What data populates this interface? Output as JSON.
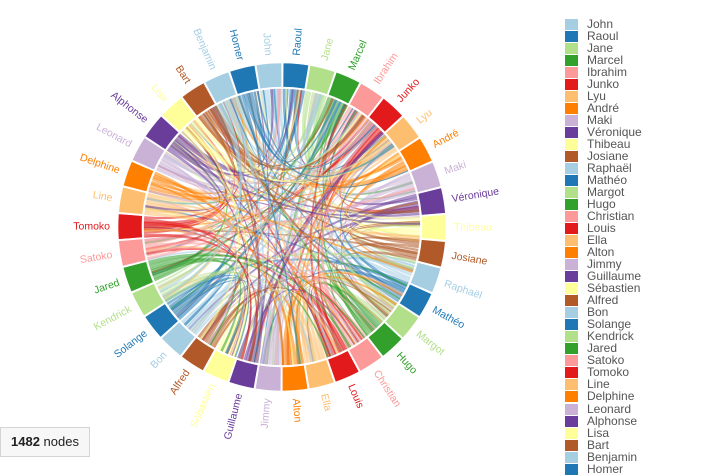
{
  "chart_data": {
    "type": "chord",
    "groups": [
      {
        "name": "John",
        "color": "#a6cee3"
      },
      {
        "name": "Raoul",
        "color": "#1f78b4"
      },
      {
        "name": "Jane",
        "color": "#b2df8a"
      },
      {
        "name": "Marcel",
        "color": "#33a02c"
      },
      {
        "name": "Ibrahim",
        "color": "#fb9a99"
      },
      {
        "name": "Junko",
        "color": "#e31a1c"
      },
      {
        "name": "Lyu",
        "color": "#fdbf6f"
      },
      {
        "name": "André",
        "color": "#ff7f00"
      },
      {
        "name": "Maki",
        "color": "#cab2d6"
      },
      {
        "name": "Véronique",
        "color": "#6a3d9a"
      },
      {
        "name": "Thibeau",
        "color": "#ffff99"
      },
      {
        "name": "Josiane",
        "color": "#b15928"
      },
      {
        "name": "Raphaël",
        "color": "#a6cee3"
      },
      {
        "name": "Mathéo",
        "color": "#1f78b4"
      },
      {
        "name": "Margot",
        "color": "#b2df8a"
      },
      {
        "name": "Hugo",
        "color": "#33a02c"
      },
      {
        "name": "Christian",
        "color": "#fb9a99"
      },
      {
        "name": "Louis",
        "color": "#e31a1c"
      },
      {
        "name": "Ella",
        "color": "#fdbf6f"
      },
      {
        "name": "Alton",
        "color": "#ff7f00"
      },
      {
        "name": "Jimmy",
        "color": "#cab2d6"
      },
      {
        "name": "Guillaume",
        "color": "#6a3d9a"
      },
      {
        "name": "Sébastien",
        "color": "#ffff99"
      },
      {
        "name": "Alfred",
        "color": "#b15928"
      },
      {
        "name": "Bon",
        "color": "#a6cee3"
      },
      {
        "name": "Solange",
        "color": "#1f78b4"
      },
      {
        "name": "Kendrick",
        "color": "#b2df8a"
      },
      {
        "name": "Jared",
        "color": "#33a02c"
      },
      {
        "name": "Satoko",
        "color": "#fb9a99"
      },
      {
        "name": "Tomoko",
        "color": "#e31a1c"
      },
      {
        "name": "Line",
        "color": "#fdbf6f"
      },
      {
        "name": "Delphine",
        "color": "#ff7f00"
      },
      {
        "name": "Leonard",
        "color": "#cab2d6"
      },
      {
        "name": "Alphonse",
        "color": "#6a3d9a"
      },
      {
        "name": "Lisa",
        "color": "#ffff99"
      },
      {
        "name": "Bart",
        "color": "#b15928"
      },
      {
        "name": "Benjamin",
        "color": "#a6cee3"
      },
      {
        "name": "Homer",
        "color": "#1f78b4"
      }
    ]
  },
  "status": {
    "count": "1482",
    "label": "nodes"
  }
}
